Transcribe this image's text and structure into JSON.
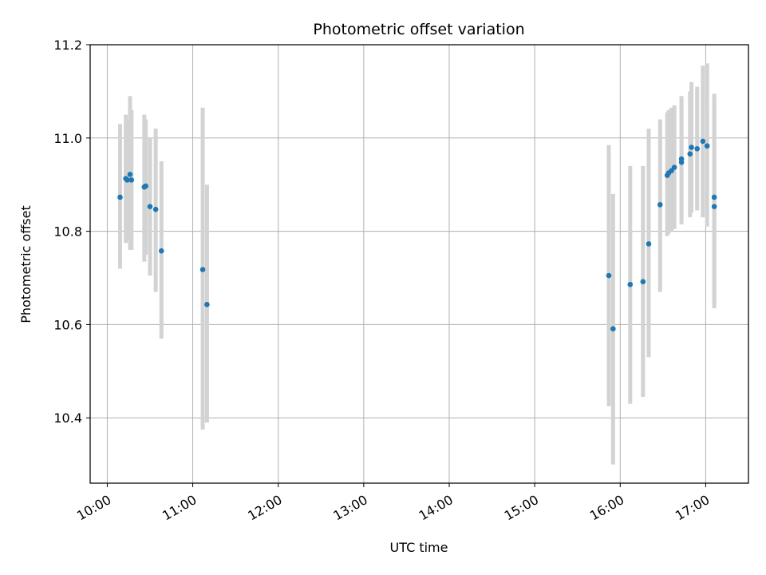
{
  "chart_data": {
    "type": "scatter",
    "title": "Photometric offset variation",
    "xlabel": "UTC time",
    "ylabel": "Photometric offset",
    "xlim": [
      "09:48",
      "17:30"
    ],
    "ylim": [
      10.26,
      11.2
    ],
    "x_ticks": [
      "10:00",
      "11:00",
      "12:00",
      "13:00",
      "14:00",
      "15:00",
      "16:00",
      "17:00"
    ],
    "y_ticks": [
      10.4,
      10.6,
      10.8,
      11.0,
      11.2
    ],
    "y_tick_labels": [
      "10.4",
      "10.6",
      "10.8",
      "11.0",
      "11.2"
    ],
    "grid": true,
    "colors": {
      "points": "#1f77b4",
      "errorbars": "#d3d3d3",
      "grid": "#b0b0b0"
    },
    "points": [
      {
        "t": "10:09",
        "y": 10.873,
        "lo": 10.72,
        "hi": 11.03
      },
      {
        "t": "10:13",
        "y": 10.913,
        "lo": 10.775,
        "hi": 11.05
      },
      {
        "t": "10:14",
        "y": 10.91,
        "lo": 10.78,
        "hi": 11.04
      },
      {
        "t": "10:16",
        "y": 10.922,
        "lo": 10.76,
        "hi": 11.09
      },
      {
        "t": "10:17",
        "y": 10.91,
        "lo": 10.76,
        "hi": 11.06
      },
      {
        "t": "10:26",
        "y": 10.895,
        "lo": 10.735,
        "hi": 11.05
      },
      {
        "t": "10:27",
        "y": 10.897,
        "lo": 10.75,
        "hi": 11.04
      },
      {
        "t": "10:30",
        "y": 10.853,
        "lo": 10.705,
        "hi": 11.0
      },
      {
        "t": "10:34",
        "y": 10.847,
        "lo": 10.67,
        "hi": 11.02
      },
      {
        "t": "10:38",
        "y": 10.758,
        "lo": 10.57,
        "hi": 10.95
      },
      {
        "t": "11:07",
        "y": 10.718,
        "lo": 10.375,
        "hi": 11.065
      },
      {
        "t": "11:10",
        "y": 10.643,
        "lo": 10.39,
        "hi": 10.9
      },
      {
        "t": "15:52",
        "y": 10.705,
        "lo": 10.425,
        "hi": 10.985
      },
      {
        "t": "15:55",
        "y": 10.591,
        "lo": 10.3,
        "hi": 10.88
      },
      {
        "t": "16:07",
        "y": 10.686,
        "lo": 10.43,
        "hi": 10.94
      },
      {
        "t": "16:16",
        "y": 10.692,
        "lo": 10.445,
        "hi": 10.94
      },
      {
        "t": "16:20",
        "y": 10.773,
        "lo": 10.53,
        "hi": 11.02
      },
      {
        "t": "16:28",
        "y": 10.857,
        "lo": 10.67,
        "hi": 11.04
      },
      {
        "t": "16:33",
        "y": 10.92,
        "lo": 10.79,
        "hi": 11.055
      },
      {
        "t": "16:34",
        "y": 10.925,
        "lo": 10.795,
        "hi": 11.06
      },
      {
        "t": "16:36",
        "y": 10.93,
        "lo": 10.8,
        "hi": 11.065
      },
      {
        "t": "16:38",
        "y": 10.937,
        "lo": 10.805,
        "hi": 11.07
      },
      {
        "t": "16:43",
        "y": 10.955,
        "lo": 10.815,
        "hi": 11.09
      },
      {
        "t": "16:43",
        "y": 10.948,
        "lo": 10.82,
        "hi": 11.08
      },
      {
        "t": "16:49",
        "y": 10.966,
        "lo": 10.83,
        "hi": 11.1
      },
      {
        "t": "16:50",
        "y": 10.98,
        "lo": 10.84,
        "hi": 11.12
      },
      {
        "t": "16:54",
        "y": 10.977,
        "lo": 10.845,
        "hi": 11.11
      },
      {
        "t": "16:58",
        "y": 10.993,
        "lo": 10.83,
        "hi": 11.155
      },
      {
        "t": "17:01",
        "y": 10.983,
        "lo": 10.81,
        "hi": 11.16
      },
      {
        "t": "17:06",
        "y": 10.873,
        "lo": 10.65,
        "hi": 11.095
      },
      {
        "t": "17:06",
        "y": 10.853,
        "lo": 10.635,
        "hi": 11.07
      }
    ]
  }
}
